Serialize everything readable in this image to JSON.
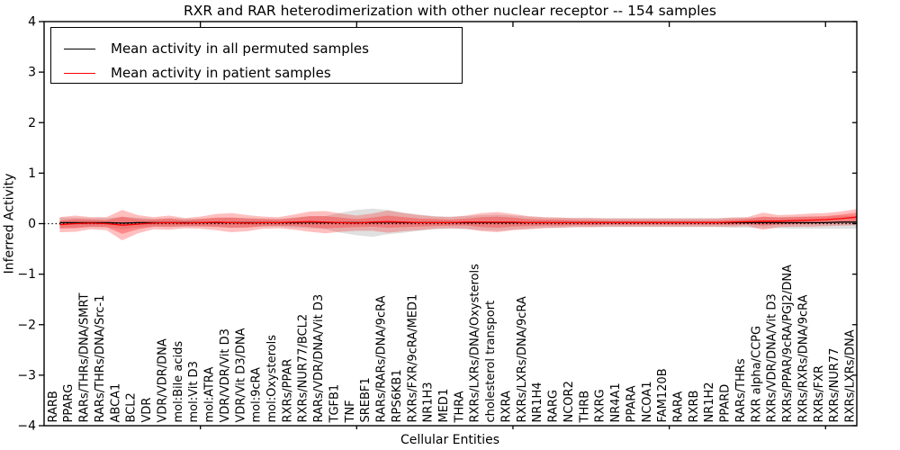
{
  "title": "RXR and RAR heterodimerization with other nuclear receptor -- 154 samples",
  "axes": {
    "xlabel": "Cellular Entities",
    "ylabel": "Inferred Activity"
  },
  "legend": {
    "items": [
      {
        "label": "Mean activity in all permuted samples",
        "color": "#000000"
      },
      {
        "label": "Mean activity in patient samples",
        "color": "#ff0000"
      }
    ]
  },
  "chart_data": {
    "type": "line",
    "title": "RXR and RAR heterodimerization with other nuclear receptor -- 154 samples",
    "xlabel": "Cellular Entities",
    "ylabel": "Inferred Activity",
    "ylim": [
      -4,
      4
    ],
    "yticks": [
      4,
      3,
      2,
      1,
      0,
      -1,
      -2,
      -3,
      -4
    ],
    "x_major_tick_every": 10,
    "grid": false,
    "legend_position": "upper left",
    "categories": [
      "RARB",
      "PPARG",
      "RARs/THRs/DNA/SMRT",
      "RARs/THRs/DNA/Src-1",
      "ABCA1",
      "BCL2",
      "VDR",
      "VDR/VDR/DNA",
      "mol:Bile acids",
      "mol:Vit D3",
      "mol:ATRA",
      "VDR/VDR/Vit D3",
      "VDR/Vit D3/DNA",
      "mol:9cRA",
      "mol:Oxysterols",
      "RXRs/PPAR",
      "RXRs/NUR77/BCL2",
      "RARs/VDR/DNA/Vit D3",
      "TGFB1",
      "TNF",
      "SREBF1",
      "RARs/RARs/DNA/9cRA",
      "RPS6KB1",
      "RXRs/FXR/9cRA/MED1",
      "NR1H3",
      "MED1",
      "THRA",
      "RXRs/LXRs/DNA/Oxysterols",
      "cholesterol transport",
      "RXRA",
      "RXRs/LXRs/DNA/9cRA",
      "NR1H4",
      "RARG",
      "NCOR2",
      "THRB",
      "RXRG",
      "NR4A1",
      "PPARA",
      "NCOA1",
      "FAM120B",
      "RARA",
      "RXRB",
      "NR1H2",
      "PPARD",
      "RARs/THRs",
      "RXR alpha/CCPG",
      "RXRs/VDR/DNA/Vit D3",
      "RXRs/PPAR/9cRA/PGJ2/DNA",
      "RXRs/RXRs/DNA/9cRA",
      "RXRs/FXR",
      "RXRs/NUR77",
      "RXRs/LXRs/DNA"
    ],
    "series": [
      {
        "name": "Mean activity in all permuted samples",
        "color": "#000000",
        "style": "solid",
        "values": [
          0.02,
          0.02,
          0.02,
          0.02,
          0.01,
          0.02,
          0.02,
          0.02,
          0.02,
          0.02,
          0.02,
          0.02,
          0.02,
          0.02,
          0.02,
          0.02,
          0.03,
          0.02,
          0.02,
          0.02,
          0.02,
          0.03,
          0.02,
          0.02,
          0.02,
          0.02,
          0.02,
          0.02,
          0.02,
          0.02,
          0.02,
          0.02,
          0.02,
          0.02,
          0.02,
          0.02,
          0.02,
          0.02,
          0.02,
          0.02,
          0.02,
          0.02,
          0.02,
          0.02,
          0.02,
          0.02,
          0.02,
          0.02,
          0.02,
          0.02,
          0.03,
          0.03
        ]
      },
      {
        "name": "Mean activity in patient samples",
        "color": "#ff0000",
        "style": "solid",
        "values": [
          -0.02,
          0.0,
          0.01,
          0.0,
          -0.03,
          -0.01,
          0.01,
          0.02,
          0.01,
          0.02,
          0.03,
          0.02,
          0.01,
          0.02,
          0.02,
          0.03,
          0.04,
          0.03,
          0.02,
          0.01,
          0.03,
          0.04,
          0.03,
          0.02,
          0.02,
          0.02,
          0.03,
          0.03,
          0.03,
          0.03,
          0.02,
          0.02,
          0.02,
          0.02,
          0.02,
          0.02,
          0.02,
          0.02,
          0.02,
          0.02,
          0.02,
          0.02,
          0.02,
          0.03,
          0.04,
          0.05,
          0.05,
          0.06,
          0.07,
          0.08,
          0.1,
          0.13
        ]
      }
    ],
    "bands": [
      {
        "name": "permuted-samples-range",
        "color": "rgba(130,130,130,0.25)",
        "center_series": 0,
        "halfwidths": [
          0.1,
          0.1,
          0.09,
          0.09,
          0.12,
          0.1,
          0.08,
          0.09,
          0.08,
          0.08,
          0.09,
          0.1,
          0.09,
          0.08,
          0.08,
          0.1,
          0.12,
          0.13,
          0.2,
          0.25,
          0.28,
          0.24,
          0.2,
          0.16,
          0.13,
          0.12,
          0.13,
          0.15,
          0.16,
          0.14,
          0.12,
          0.1,
          0.1,
          0.09,
          0.09,
          0.09,
          0.09,
          0.09,
          0.09,
          0.09,
          0.09,
          0.09,
          0.09,
          0.1,
          0.1,
          0.11,
          0.11,
          0.12,
          0.12,
          0.12,
          0.13,
          0.13
        ]
      },
      {
        "name": "patient-samples-range-outer",
        "color": "rgba(255,25,25,0.28)",
        "center_series": 1,
        "halfwidths": [
          0.15,
          0.16,
          0.12,
          0.13,
          0.3,
          0.18,
          0.12,
          0.14,
          0.1,
          0.12,
          0.16,
          0.19,
          0.16,
          0.12,
          0.11,
          0.15,
          0.2,
          0.22,
          0.18,
          0.15,
          0.17,
          0.22,
          0.18,
          0.15,
          0.12,
          0.11,
          0.13,
          0.18,
          0.2,
          0.16,
          0.13,
          0.11,
          0.1,
          0.09,
          0.09,
          0.08,
          0.08,
          0.08,
          0.08,
          0.08,
          0.08,
          0.08,
          0.08,
          0.09,
          0.09,
          0.17,
          0.12,
          0.12,
          0.13,
          0.13,
          0.14,
          0.16
        ]
      },
      {
        "name": "patient-samples-range-inner",
        "color": "rgba(255,25,25,0.32)",
        "center_series": 1,
        "halfwidths": [
          0.08,
          0.09,
          0.07,
          0.07,
          0.17,
          0.1,
          0.07,
          0.08,
          0.06,
          0.07,
          0.09,
          0.1,
          0.09,
          0.07,
          0.06,
          0.08,
          0.11,
          0.12,
          0.1,
          0.08,
          0.09,
          0.12,
          0.1,
          0.08,
          0.07,
          0.06,
          0.07,
          0.1,
          0.11,
          0.09,
          0.07,
          0.06,
          0.06,
          0.05,
          0.05,
          0.04,
          0.04,
          0.04,
          0.04,
          0.04,
          0.04,
          0.04,
          0.04,
          0.05,
          0.05,
          0.09,
          0.07,
          0.07,
          0.07,
          0.07,
          0.08,
          0.09
        ]
      }
    ],
    "zero_line": {
      "y": 0,
      "color": "#000000",
      "style": "dotted"
    }
  }
}
